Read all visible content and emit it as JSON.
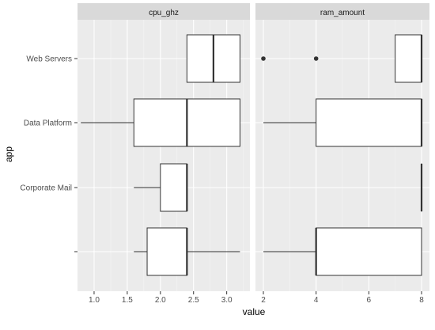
{
  "chart_data": {
    "type": "boxplot",
    "xlabel": "value",
    "ylabel": "app",
    "categories": [
      "Web Servers",
      "Data Platform",
      "Corporate Mail",
      ""
    ],
    "facets": [
      {
        "name": "cpu_ghz",
        "xlim": [
          0.75,
          3.35
        ],
        "ticks": [
          1.0,
          1.5,
          2.0,
          2.5,
          3.0
        ],
        "tick_labels": [
          "1.0",
          "1.5",
          "2.0",
          "2.5",
          "3.0"
        ],
        "boxes": [
          {
            "category": "Web Servers",
            "whisker_low": 2.4,
            "q1": 2.4,
            "median": 2.8,
            "q3": 3.2,
            "whisker_high": 3.2,
            "outliers": []
          },
          {
            "category": "Data Platform",
            "whisker_low": 0.8,
            "q1": 1.6,
            "median": 2.4,
            "q3": 3.2,
            "whisker_high": 3.2,
            "outliers": []
          },
          {
            "category": "Corporate Mail",
            "whisker_low": 1.6,
            "q1": 2.0,
            "median": 2.4,
            "q3": 2.4,
            "whisker_high": 2.4,
            "outliers": []
          },
          {
            "category": "",
            "whisker_low": 1.6,
            "q1": 1.8,
            "median": 2.4,
            "q3": 2.4,
            "whisker_high": 3.2,
            "outliers": []
          }
        ]
      },
      {
        "name": "ram_amount",
        "xlim": [
          1.7,
          8.3
        ],
        "ticks": [
          2,
          4,
          6,
          8
        ],
        "tick_labels": [
          "2",
          "4",
          "6",
          "8"
        ],
        "boxes": [
          {
            "category": "Web Servers",
            "whisker_low": 7,
            "q1": 7,
            "median": 8,
            "q3": 8,
            "whisker_high": 8,
            "outliers": [
              2,
              4
            ]
          },
          {
            "category": "Data Platform",
            "whisker_low": 2,
            "q1": 4,
            "median": 8,
            "q3": 8,
            "whisker_high": 8,
            "outliers": []
          },
          {
            "category": "Corporate Mail",
            "whisker_low": 8,
            "q1": 8,
            "median": 8,
            "q3": 8,
            "whisker_high": 8,
            "outliers": []
          },
          {
            "category": "",
            "whisker_low": 2,
            "q1": 4,
            "median": 4,
            "q3": 8,
            "whisker_high": 8,
            "outliers": []
          }
        ]
      }
    ],
    "grid": true,
    "legend": "none"
  }
}
